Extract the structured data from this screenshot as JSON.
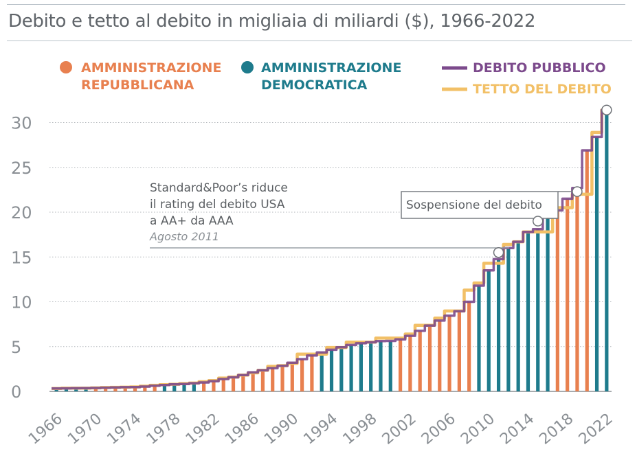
{
  "title": "Debito e tetto al debito in migliaia di miliardi ($), 1966-2022",
  "legend": {
    "republican": {
      "label_line1": "AMMINISTRAZIONE",
      "label_line2": "REPUBBLICANA",
      "color": "#e8804f"
    },
    "democratic": {
      "label_line1": "AMMINISTRAZIONE",
      "label_line2": "DEMOCRATICA",
      "color": "#1e7b8c"
    },
    "debt": {
      "label": "DEBITO PUBBLICO",
      "color": "#7c4a8c"
    },
    "ceiling": {
      "label": "TETTO DEL DEBITO",
      "color": "#f2c067"
    }
  },
  "annotations": {
    "sp": {
      "line1": "Standard&Poor’s riduce",
      "line2": "il rating del debito USA",
      "line3": "a AA+ da AAA",
      "date": "Agosto 2011"
    },
    "suspension": {
      "label": "Sospensione del debito"
    }
  },
  "chart_data": {
    "type": "bar",
    "title": "Debito e tetto al debito in migliaia di miliardi ($), 1966-2022",
    "y_ticks": [
      "0",
      "5",
      "10",
      "15",
      "20",
      "25",
      "30"
    ],
    "ylim": [
      0,
      32
    ],
    "x_ticks": [
      "1966",
      "1970",
      "1974",
      "1978",
      "1982",
      "1986",
      "1990",
      "1994",
      "1998",
      "2002",
      "2006",
      "2010",
      "2014",
      "2018",
      "2022"
    ],
    "grid": "dotted horizontal",
    "years": [
      1966,
      1967,
      1968,
      1969,
      1970,
      1971,
      1972,
      1973,
      1974,
      1975,
      1976,
      1977,
      1978,
      1979,
      1980,
      1981,
      1982,
      1983,
      1984,
      1985,
      1986,
      1987,
      1988,
      1989,
      1990,
      1991,
      1992,
      1993,
      1994,
      1995,
      1996,
      1997,
      1998,
      1999,
      2000,
      2001,
      2002,
      2003,
      2004,
      2005,
      2006,
      2007,
      2008,
      2009,
      2010,
      2011,
      2012,
      2013,
      2014,
      2015,
      2016,
      2017,
      2018,
      2019,
      2020,
      2021,
      2022
    ],
    "administration": [
      "D",
      "D",
      "D",
      "D",
      "R",
      "R",
      "R",
      "R",
      "R",
      "R",
      "R",
      "D",
      "D",
      "D",
      "D",
      "R",
      "R",
      "R",
      "R",
      "R",
      "R",
      "R",
      "R",
      "R",
      "R",
      "R",
      "R",
      "D",
      "D",
      "D",
      "D",
      "D",
      "D",
      "D",
      "D",
      "R",
      "R",
      "R",
      "R",
      "R",
      "R",
      "R",
      "R",
      "D",
      "D",
      "D",
      "D",
      "D",
      "D",
      "D",
      "D",
      "R",
      "R",
      "R",
      "R",
      "D",
      "D"
    ],
    "series": [
      {
        "name": "DEBITO PUBBLICO",
        "values": [
          0.32,
          0.34,
          0.35,
          0.36,
          0.38,
          0.41,
          0.44,
          0.47,
          0.48,
          0.54,
          0.63,
          0.71,
          0.78,
          0.83,
          0.91,
          1.0,
          1.14,
          1.38,
          1.57,
          1.82,
          2.13,
          2.35,
          2.6,
          2.86,
          3.2,
          3.6,
          4.0,
          4.35,
          4.64,
          4.92,
          5.18,
          5.37,
          5.48,
          5.61,
          5.63,
          5.8,
          6.2,
          6.76,
          7.35,
          7.9,
          8.45,
          8.95,
          10.0,
          11.8,
          13.5,
          14.76,
          16.0,
          16.7,
          17.8,
          18.1,
          19.5,
          20.2,
          21.5,
          22.7,
          26.9,
          28.4,
          31.4
        ]
      },
      {
        "name": "TETTO DEL DEBITO",
        "values": [
          0.33,
          0.36,
          0.36,
          0.37,
          0.39,
          0.43,
          0.45,
          0.47,
          0.5,
          0.58,
          0.68,
          0.75,
          0.8,
          0.87,
          0.93,
          1.08,
          1.21,
          1.49,
          1.6,
          1.82,
          2.07,
          2.35,
          2.8,
          2.87,
          3.12,
          4.15,
          4.15,
          4.15,
          4.9,
          4.9,
          5.5,
          5.5,
          5.5,
          5.95,
          5.95,
          5.95,
          6.4,
          7.38,
          7.38,
          8.18,
          8.97,
          8.97,
          11.3,
          12.1,
          14.3,
          14.3,
          16.4,
          16.7,
          17.8,
          17.8,
          17.8,
          20.5,
          20.5,
          22.0,
          22.0,
          28.9,
          31.4
        ]
      }
    ],
    "markers": [
      {
        "year": 2011,
        "value": 15.5,
        "label": "Agosto 2011"
      },
      {
        "year": 2015,
        "value": 19.0
      },
      {
        "year": 2019,
        "value": 22.3
      },
      {
        "year": 2022,
        "value": 31.4
      }
    ]
  }
}
